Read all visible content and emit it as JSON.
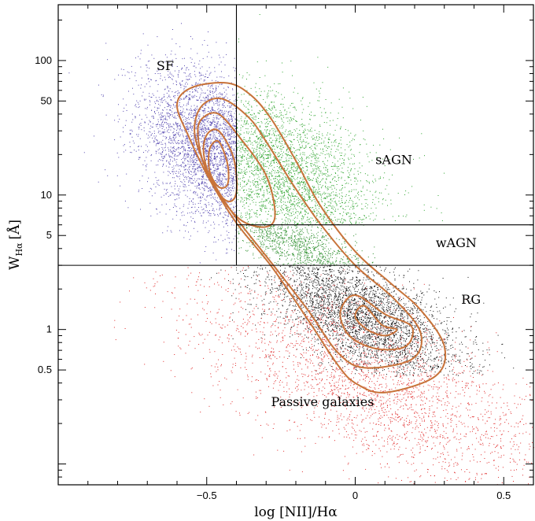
{
  "chart_data": {
    "type": "scatter",
    "title": "",
    "xlabel": "log [NII]/Hα",
    "ylabel": "W",
    "ylabel_sub": "Hα",
    "ylabel_unit": "[Å]",
    "xlim": [
      -1.0,
      0.6
    ],
    "ylim": [
      0.07,
      260
    ],
    "yscale": "log",
    "grid": false,
    "x_ticks": [
      {
        "value": -0.5,
        "label": "−0.5"
      },
      {
        "value": 0,
        "label": "0"
      },
      {
        "value": 0.5,
        "label": "0.5"
      }
    ],
    "y_ticks": [
      {
        "value": 0.5,
        "label": "0.5"
      },
      {
        "value": 1,
        "label": "1"
      },
      {
        "value": 5,
        "label": "5"
      },
      {
        "value": 10,
        "label": "10"
      },
      {
        "value": 50,
        "label": "50"
      },
      {
        "value": 100,
        "label": "100"
      }
    ],
    "dividers": [
      {
        "name": "vertical-divider",
        "x": -0.4,
        "y_from": 3,
        "y_to": 260
      },
      {
        "name": "horizontal-divider-low",
        "y": 3,
        "x_from": -1.0,
        "x_to": 0.6
      },
      {
        "name": "horizontal-divider-high",
        "y": 6,
        "x_from": -0.4,
        "x_to": 0.6
      }
    ],
    "regions": [
      {
        "label": "SF",
        "x": -0.64,
        "y": 85
      },
      {
        "label": "sAGN",
        "x": 0.13,
        "y": 17
      },
      {
        "label": "wAGN",
        "x": 0.34,
        "y": 4.1
      },
      {
        "label": "RG",
        "x": 0.39,
        "y": 1.55
      },
      {
        "label": "Passive galaxies",
        "x": -0.11,
        "y": 0.27
      }
    ],
    "populations": [
      {
        "key": "SF",
        "color": "#5548b0",
        "cx": -0.48,
        "cy": 22,
        "sx": 0.12,
        "slog": 0.28,
        "n": 3200,
        "xmin": -1.0,
        "xmax": -0.4,
        "ymin": 3,
        "ymax": 260
      },
      {
        "key": "sAGN",
        "color": "#2fa52f",
        "cx": -0.25,
        "cy": 14,
        "sx": 0.17,
        "slog": 0.3,
        "n": 2800,
        "xmin": -0.4,
        "xmax": 0.6,
        "ymin": 6,
        "ymax": 260
      },
      {
        "key": "wAGN",
        "color": "#2d8f2d",
        "cx": -0.2,
        "cy": 4.3,
        "sx": 0.14,
        "slog": 0.1,
        "n": 900,
        "xmin": -0.4,
        "xmax": 0.6,
        "ymin": 3,
        "ymax": 6
      },
      {
        "key": "RG",
        "color": "#111111",
        "cx": 0.02,
        "cy": 1.25,
        "sx": 0.17,
        "slog": 0.2,
        "n": 3600,
        "xmin": -1.0,
        "xmax": 0.6,
        "ymin": 0.45,
        "ymax": 3
      },
      {
        "key": "Passive",
        "color": "#e02a2a",
        "cx": 0.05,
        "cy": 0.4,
        "sx": 0.32,
        "slog": 0.3,
        "n": 2600,
        "xmin": -1.0,
        "xmax": 0.6,
        "ymin": 0.07,
        "ymax": 3
      }
    ],
    "contour_color": "#c8733a",
    "contours": [
      {
        "name": "contour-outer",
        "points": [
          [
            -0.43,
            68
          ],
          [
            -0.35,
            55
          ],
          [
            -0.28,
            36
          ],
          [
            -0.2,
            18
          ],
          [
            -0.12,
            8.5
          ],
          [
            0.0,
            3.8
          ],
          [
            0.12,
            2.2
          ],
          [
            0.22,
            1.4
          ],
          [
            0.3,
            0.75
          ],
          [
            0.27,
            0.45
          ],
          [
            0.1,
            0.34
          ],
          [
            0.0,
            0.4
          ],
          [
            -0.06,
            0.55
          ],
          [
            -0.15,
            1.1
          ],
          [
            -0.28,
            2.9
          ],
          [
            -0.4,
            6.2
          ],
          [
            -0.49,
            13
          ],
          [
            -0.56,
            27
          ],
          [
            -0.6,
            47
          ],
          [
            -0.55,
            63
          ]
        ]
      },
      {
        "name": "contour-2",
        "points": [
          [
            -0.45,
            52
          ],
          [
            -0.36,
            38
          ],
          [
            -0.3,
            25
          ],
          [
            -0.21,
            12
          ],
          [
            -0.12,
            6.2
          ],
          [
            0.0,
            3.0
          ],
          [
            0.13,
            1.7
          ],
          [
            0.22,
            0.95
          ],
          [
            0.19,
            0.6
          ],
          [
            0.03,
            0.52
          ],
          [
            -0.06,
            0.68
          ],
          [
            -0.16,
            1.4
          ],
          [
            -0.29,
            3.3
          ],
          [
            -0.41,
            7.2
          ],
          [
            -0.49,
            14
          ],
          [
            -0.54,
            28
          ],
          [
            -0.52,
            45
          ]
        ]
      },
      {
        "name": "contour-3",
        "points": [
          [
            -0.46,
            40
          ],
          [
            -0.39,
            27
          ],
          [
            -0.3,
            14
          ],
          [
            -0.27,
            7.2
          ],
          [
            -0.3,
            5.8
          ],
          [
            -0.38,
            6.4
          ],
          [
            -0.45,
            9.5
          ],
          [
            -0.51,
            17
          ],
          [
            -0.53,
            30
          ],
          [
            -0.51,
            38
          ]
        ]
      },
      {
        "name": "contour-4",
        "points": [
          [
            -0.46,
            30
          ],
          [
            -0.41,
            19
          ],
          [
            -0.4,
            10.5
          ],
          [
            -0.43,
            9
          ],
          [
            -0.48,
            12
          ],
          [
            -0.51,
            20
          ],
          [
            -0.5,
            28
          ]
        ]
      },
      {
        "name": "contour-inner",
        "points": [
          [
            -0.46,
            25
          ],
          [
            -0.43,
            17
          ],
          [
            -0.43,
            12
          ],
          [
            -0.46,
            11.5
          ],
          [
            -0.49,
            15
          ],
          [
            -0.49,
            22
          ]
        ]
      },
      {
        "name": "contour-rg-peak",
        "points": [
          [
            0.03,
            1.5
          ],
          [
            0.09,
            1.08
          ],
          [
            0.14,
            1.0
          ],
          [
            0.1,
            0.9
          ],
          [
            0.04,
            1.0
          ],
          [
            0.0,
            1.25
          ]
        ]
      },
      {
        "name": "contour-rg-core",
        "points": [
          [
            0.0,
            1.8
          ],
          [
            0.1,
            1.3
          ],
          [
            0.19,
            1.05
          ],
          [
            0.17,
            0.75
          ],
          [
            0.07,
            0.72
          ],
          [
            -0.02,
            0.9
          ],
          [
            -0.05,
            1.35
          ]
        ]
      }
    ]
  }
}
